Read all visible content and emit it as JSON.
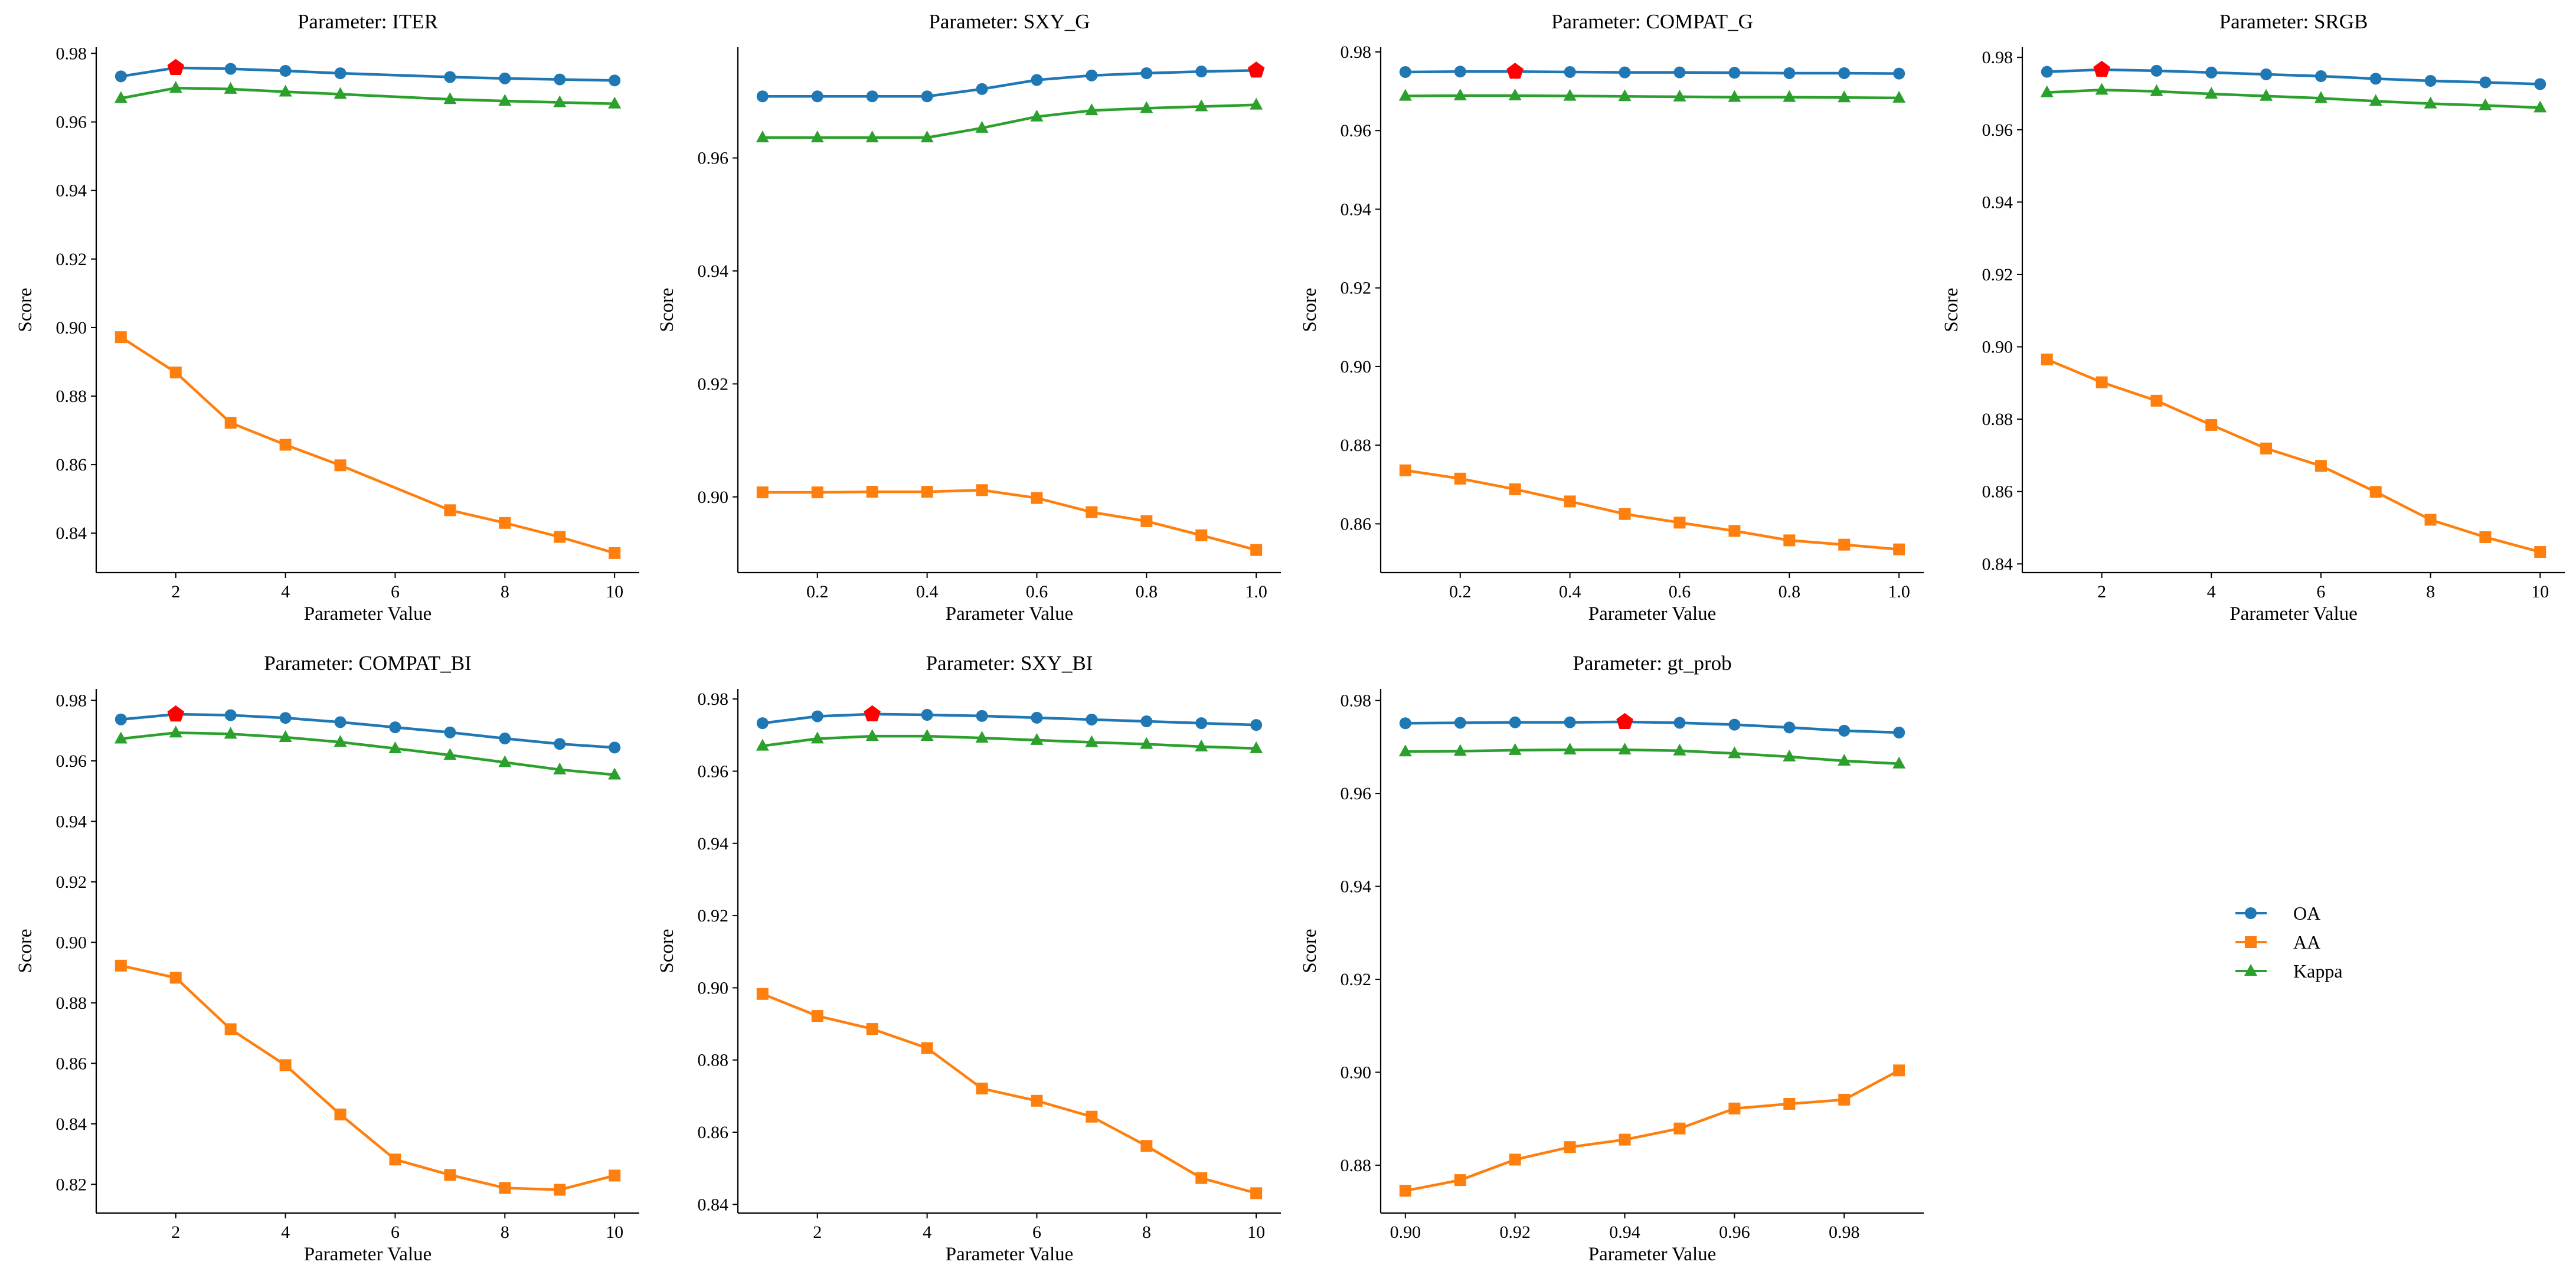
{
  "colors": {
    "OA": "#1f77b4",
    "AA": "#ff7f0e",
    "Kappa": "#2ca02c",
    "best_marker": "#ff0000"
  },
  "legend": {
    "placement": "center of empty 8th panel",
    "entries": [
      "OA",
      "AA",
      "Kappa"
    ]
  },
  "chart_data": [
    {
      "type": "line",
      "title": "Parameter: ITER",
      "xlabel": "Parameter Value",
      "ylabel": "Score",
      "x": [
        1,
        2,
        3,
        4,
        5,
        7,
        8,
        9,
        10
      ],
      "xticks": [
        2,
        4,
        6,
        8,
        10
      ],
      "xtick_labels": [
        "2",
        "4",
        "6",
        "8",
        "10"
      ],
      "xlim": [
        0.55,
        10.45
      ],
      "yticks": [
        0.84,
        0.86,
        0.88,
        0.9,
        0.92,
        0.94,
        0.96,
        0.98
      ],
      "ytick_labels": [
        "0.84",
        "0.86",
        "0.88",
        "0.90",
        "0.92",
        "0.94",
        "0.96",
        "0.98"
      ],
      "ylim": [
        0.8285,
        0.9818
      ],
      "best_index": 1,
      "series": [
        {
          "name": "OA",
          "marker": "circle",
          "values": [
            0.9733,
            0.9758,
            0.9755,
            0.9749,
            0.9742,
            0.9731,
            0.9727,
            0.9724,
            0.9721
          ]
        },
        {
          "name": "AA",
          "marker": "square",
          "values": [
            0.8972,
            0.8869,
            0.8722,
            0.8658,
            0.8598,
            0.8467,
            0.843,
            0.8389,
            0.8342
          ]
        },
        {
          "name": "Kappa",
          "marker": "triangle",
          "values": [
            0.9669,
            0.9699,
            0.9696,
            0.9688,
            0.9681,
            0.9666,
            0.9661,
            0.9657,
            0.9653
          ]
        }
      ]
    },
    {
      "type": "line",
      "title": "Parameter: SXY_G",
      "xlabel": "Parameter Value",
      "ylabel": "Score",
      "x": [
        0.1,
        0.2,
        0.3,
        0.4,
        0.5,
        0.6,
        0.7,
        0.8,
        0.9,
        1.0
      ],
      "xticks": [
        0.2,
        0.4,
        0.6,
        0.8,
        1.0
      ],
      "xtick_labels": [
        "0.2",
        "0.4",
        "0.6",
        "0.8",
        "1.0"
      ],
      "xlim": [
        0.055,
        1.045
      ],
      "yticks": [
        0.9,
        0.92,
        0.94,
        0.96
      ],
      "ytick_labels": [
        "0.90",
        "0.92",
        "0.94",
        "0.96"
      ],
      "ylim": [
        0.8866,
        0.9796
      ],
      "best_index": 9,
      "series": [
        {
          "name": "OA",
          "marker": "circle",
          "values": [
            0.9709,
            0.9709,
            0.9709,
            0.9709,
            0.9722,
            0.9738,
            0.9746,
            0.975,
            0.9753,
            0.9755
          ]
        },
        {
          "name": "AA",
          "marker": "square",
          "values": [
            0.9008,
            0.9008,
            0.9009,
            0.9009,
            0.9012,
            0.8998,
            0.8973,
            0.8957,
            0.8932,
            0.8906
          ]
        },
        {
          "name": "Kappa",
          "marker": "triangle",
          "values": [
            0.9636,
            0.9636,
            0.9636,
            0.9636,
            0.9653,
            0.9673,
            0.9684,
            0.9688,
            0.9691,
            0.9694
          ]
        }
      ]
    },
    {
      "type": "line",
      "title": "Parameter: COMPAT_G",
      "xlabel": "Parameter Value",
      "ylabel": "Score",
      "x": [
        0.1,
        0.2,
        0.3,
        0.4,
        0.5,
        0.6,
        0.7,
        0.8,
        0.9,
        1.0
      ],
      "xticks": [
        0.2,
        0.4,
        0.6,
        0.8,
        1.0
      ],
      "xtick_labels": [
        "0.2",
        "0.4",
        "0.6",
        "0.8",
        "1.0"
      ],
      "xlim": [
        0.055,
        1.045
      ],
      "yticks": [
        0.86,
        0.88,
        0.9,
        0.92,
        0.94,
        0.96,
        0.98
      ],
      "ytick_labels": [
        "0.86",
        "0.88",
        "0.90",
        "0.92",
        "0.94",
        "0.96",
        "0.98"
      ],
      "ylim": [
        0.8476,
        0.9812
      ],
      "best_index": 2,
      "series": [
        {
          "name": "OA",
          "marker": "circle",
          "values": [
            0.9749,
            0.975,
            0.975,
            0.9749,
            0.9748,
            0.9748,
            0.9747,
            0.9746,
            0.9746,
            0.9745
          ]
        },
        {
          "name": "AA",
          "marker": "square",
          "values": [
            0.8736,
            0.8715,
            0.8688,
            0.8657,
            0.8625,
            0.8603,
            0.8582,
            0.8558,
            0.8547,
            0.8535
          ]
        },
        {
          "name": "Kappa",
          "marker": "triangle",
          "values": [
            0.9688,
            0.9689,
            0.9689,
            0.9688,
            0.9687,
            0.9686,
            0.9685,
            0.9685,
            0.9684,
            0.9683
          ]
        }
      ]
    },
    {
      "type": "line",
      "title": "Parameter: SRGB",
      "xlabel": "Parameter Value",
      "ylabel": "Score",
      "x": [
        1,
        2,
        3,
        4,
        5,
        6,
        7,
        8,
        9,
        10
      ],
      "xticks": [
        2,
        4,
        6,
        8,
        10
      ],
      "xtick_labels": [
        "2",
        "4",
        "6",
        "8",
        "10"
      ],
      "xlim": [
        0.55,
        10.45
      ],
      "yticks": [
        0.84,
        0.86,
        0.88,
        0.9,
        0.92,
        0.94,
        0.96,
        0.98
      ],
      "ytick_labels": [
        "0.84",
        "0.86",
        "0.88",
        "0.90",
        "0.92",
        "0.94",
        "0.96",
        "0.98"
      ],
      "ylim": [
        0.8376,
        0.9828
      ],
      "best_index": 1,
      "series": [
        {
          "name": "OA",
          "marker": "circle",
          "values": [
            0.976,
            0.9766,
            0.9763,
            0.9758,
            0.9753,
            0.9748,
            0.9741,
            0.9735,
            0.9731,
            0.9726
          ]
        },
        {
          "name": "AA",
          "marker": "square",
          "values": [
            0.8965,
            0.8902,
            0.8851,
            0.8784,
            0.8719,
            0.8671,
            0.8599,
            0.8522,
            0.8474,
            0.8433
          ]
        },
        {
          "name": "Kappa",
          "marker": "triangle",
          "values": [
            0.9703,
            0.971,
            0.9706,
            0.9699,
            0.9693,
            0.9687,
            0.9679,
            0.9672,
            0.9667,
            0.9661
          ]
        }
      ]
    },
    {
      "type": "line",
      "title": "Parameter: COMPAT_BI",
      "xlabel": "Parameter Value",
      "ylabel": "Score",
      "x": [
        1,
        2,
        3,
        4,
        5,
        6,
        7,
        8,
        9,
        10
      ],
      "xticks": [
        2,
        4,
        6,
        8,
        10
      ],
      "xtick_labels": [
        "2",
        "4",
        "6",
        "8",
        "10"
      ],
      "xlim": [
        0.55,
        10.45
      ],
      "yticks": [
        0.82,
        0.84,
        0.86,
        0.88,
        0.9,
        0.92,
        0.94,
        0.96,
        0.98
      ],
      "ytick_labels": [
        "0.82",
        "0.84",
        "0.86",
        "0.88",
        "0.90",
        "0.92",
        "0.94",
        "0.96",
        "0.98"
      ],
      "ylim": [
        0.8105,
        0.9838
      ],
      "best_index": 1,
      "series": [
        {
          "name": "OA",
          "marker": "circle",
          "values": [
            0.9737,
            0.9754,
            0.9751,
            0.9742,
            0.9728,
            0.9711,
            0.9694,
            0.9674,
            0.9656,
            0.9644
          ]
        },
        {
          "name": "AA",
          "marker": "square",
          "values": [
            0.8923,
            0.8883,
            0.8713,
            0.8594,
            0.8431,
            0.8282,
            0.8231,
            0.8188,
            0.8182,
            0.8229
          ]
        },
        {
          "name": "Kappa",
          "marker": "triangle",
          "values": [
            0.9673,
            0.9693,
            0.9689,
            0.9678,
            0.9662,
            0.9641,
            0.9619,
            0.9595,
            0.9571,
            0.9554
          ]
        }
      ]
    },
    {
      "type": "line",
      "title": "Parameter: SXY_BI",
      "xlabel": "Parameter Value",
      "ylabel": "Score",
      "x": [
        1,
        2,
        3,
        4,
        5,
        6,
        7,
        8,
        9,
        10
      ],
      "xticks": [
        2,
        4,
        6,
        8,
        10
      ],
      "xtick_labels": [
        "2",
        "4",
        "6",
        "8",
        "10"
      ],
      "xlim": [
        0.55,
        10.45
      ],
      "yticks": [
        0.84,
        0.86,
        0.88,
        0.9,
        0.92,
        0.94,
        0.96,
        0.98
      ],
      "ytick_labels": [
        "0.84",
        "0.86",
        "0.88",
        "0.90",
        "0.92",
        "0.94",
        "0.96",
        "0.98"
      ],
      "ylim": [
        0.8376,
        0.9828
      ],
      "best_index": 2,
      "series": [
        {
          "name": "OA",
          "marker": "circle",
          "values": [
            0.9733,
            0.9752,
            0.9758,
            0.9756,
            0.9753,
            0.9748,
            0.9743,
            0.9738,
            0.9733,
            0.9728
          ]
        },
        {
          "name": "AA",
          "marker": "square",
          "values": [
            0.8983,
            0.8922,
            0.8886,
            0.8833,
            0.8721,
            0.8687,
            0.8643,
            0.8562,
            0.8473,
            0.8431
          ]
        },
        {
          "name": "Kappa",
          "marker": "triangle",
          "values": [
            0.967,
            0.969,
            0.9697,
            0.9697,
            0.9692,
            0.9686,
            0.968,
            0.9675,
            0.9668,
            0.9663
          ]
        }
      ]
    },
    {
      "type": "line",
      "title": "Parameter: gt_prob",
      "xlabel": "Parameter Value",
      "ylabel": "Score",
      "x": [
        0.9,
        0.91,
        0.92,
        0.93,
        0.94,
        0.95,
        0.96,
        0.97,
        0.98,
        0.99
      ],
      "xticks": [
        0.9,
        0.92,
        0.94,
        0.96,
        0.98
      ],
      "xtick_labels": [
        "0.90",
        "0.92",
        "0.94",
        "0.96",
        "0.98"
      ],
      "xlim": [
        0.8955,
        0.9945
      ],
      "yticks": [
        0.88,
        0.9,
        0.92,
        0.94,
        0.96,
        0.98
      ],
      "ytick_labels": [
        "0.88",
        "0.90",
        "0.92",
        "0.94",
        "0.96",
        "0.98"
      ],
      "ylim": [
        0.8697,
        0.9825
      ],
      "best_index": 4,
      "series": [
        {
          "name": "OA",
          "marker": "circle",
          "values": [
            0.9751,
            0.9752,
            0.9753,
            0.9753,
            0.9754,
            0.9752,
            0.9748,
            0.9742,
            0.9735,
            0.9731
          ]
        },
        {
          "name": "AA",
          "marker": "square",
          "values": [
            0.8745,
            0.8768,
            0.8812,
            0.8839,
            0.8855,
            0.8879,
            0.8922,
            0.8932,
            0.8941,
            0.9004
          ]
        },
        {
          "name": "Kappa",
          "marker": "triangle",
          "values": [
            0.969,
            0.9691,
            0.9693,
            0.9694,
            0.9694,
            0.9692,
            0.9686,
            0.9679,
            0.967,
            0.9664
          ]
        }
      ]
    }
  ]
}
